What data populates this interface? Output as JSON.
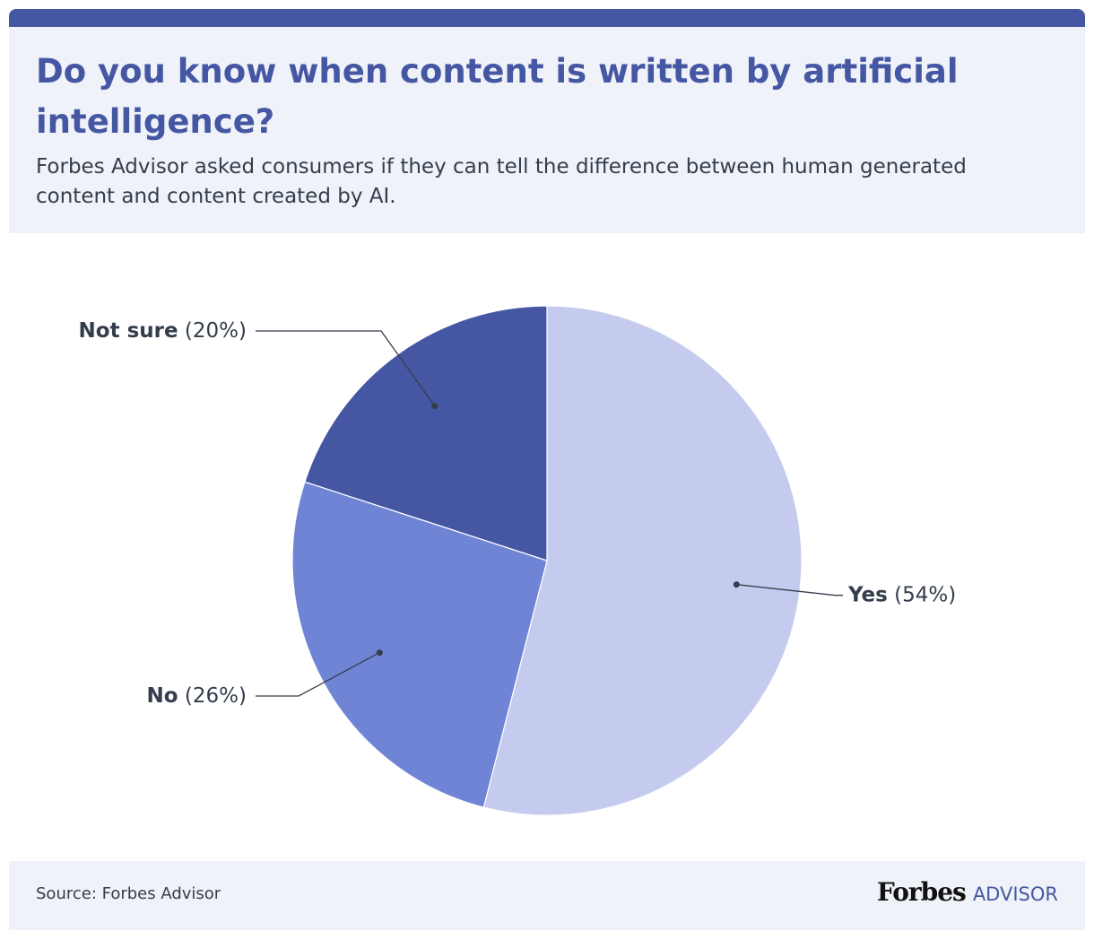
{
  "chart_data": {
    "type": "pie",
    "title": "Do you know when content is written by artificial intelligence?",
    "subtitle": "Forbes Advisor asked consumers if they can tell the difference between human generated content and content created by AI.",
    "categories": [
      "Yes",
      "No",
      "Not sure"
    ],
    "values": [
      54,
      26,
      20
    ],
    "value_labels": [
      "(54%)",
      "(26%)",
      "(20%)"
    ],
    "colors": [
      "#c5cbee",
      "#7084d6",
      "#4557a3"
    ],
    "source": "Source: Forbes Advisor",
    "logo": "Forbes",
    "logo_suffix": "ADVISOR"
  }
}
